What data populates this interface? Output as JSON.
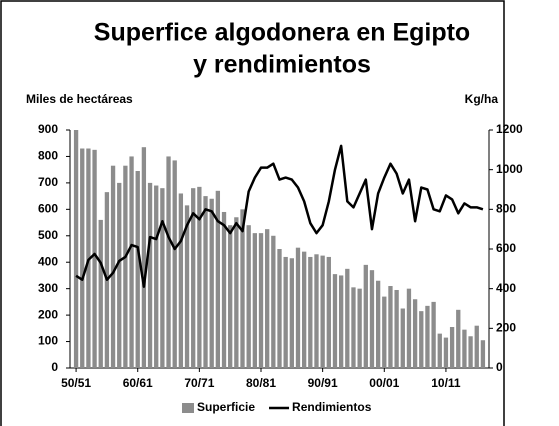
{
  "chart_data": {
    "type": "bar_line",
    "title": [
      "Superfice algodonera en Egipto",
      "y rendimientos"
    ],
    "y_label": "Miles de hectáreas",
    "y2_label": "Kg/ha",
    "categories": [
      "50/51",
      null,
      null,
      null,
      null,
      null,
      null,
      null,
      null,
      null,
      "60/61",
      null,
      null,
      null,
      null,
      null,
      null,
      null,
      null,
      null,
      "70/71",
      null,
      null,
      null,
      null,
      null,
      null,
      null,
      null,
      null,
      "80/81",
      null,
      null,
      null,
      null,
      null,
      null,
      null,
      null,
      null,
      "90/91",
      null,
      null,
      null,
      null,
      null,
      null,
      null,
      null,
      null,
      "00/01",
      null,
      null,
      null,
      null,
      null,
      null,
      null,
      null,
      null,
      "10/11",
      null,
      null,
      null,
      null,
      null,
      null
    ],
    "series": [
      {
        "name": "Superficie",
        "color": "#8c8c8c",
        "kind": "bar",
        "values": [
          900,
          830,
          830,
          825,
          560,
          665,
          765,
          700,
          765,
          800,
          745,
          835,
          700,
          690,
          680,
          800,
          785,
          660,
          615,
          680,
          685,
          650,
          640,
          670,
          590,
          540,
          570,
          600,
          540,
          510,
          510,
          525,
          500,
          450,
          420,
          415,
          455,
          440,
          420,
          430,
          425,
          420,
          355,
          350,
          375,
          305,
          300,
          390,
          370,
          330,
          270,
          310,
          295,
          225,
          300,
          260,
          215,
          235,
          250,
          130,
          115,
          155,
          220,
          145,
          120,
          160,
          105
        ]
      },
      {
        "name": "Rendimientos",
        "color": "#000000",
        "kind": "line",
        "axis": "y2",
        "values": [
          465,
          445,
          545,
          575,
          530,
          445,
          480,
          540,
          560,
          620,
          610,
          410,
          660,
          650,
          740,
          660,
          600,
          640,
          720,
          780,
          750,
          800,
          790,
          740,
          720,
          680,
          730,
          690,
          890,
          960,
          1010,
          1010,
          1030,
          950,
          960,
          950,
          910,
          840,
          730,
          680,
          720,
          840,
          1000,
          1120,
          840,
          810,
          880,
          950,
          700,
          880,
          960,
          1030,
          980,
          880,
          950,
          740,
          910,
          900,
          800,
          790,
          870,
          850,
          780,
          830,
          810,
          810,
          800
        ]
      }
    ],
    "ylim": [
      0,
      900
    ],
    "yticks": [
      0,
      100,
      200,
      300,
      400,
      500,
      600,
      700,
      800,
      900
    ],
    "y2lim": [
      0,
      1200
    ],
    "y2ticks": [
      0,
      200,
      400,
      600,
      800,
      1000,
      1200
    ]
  }
}
